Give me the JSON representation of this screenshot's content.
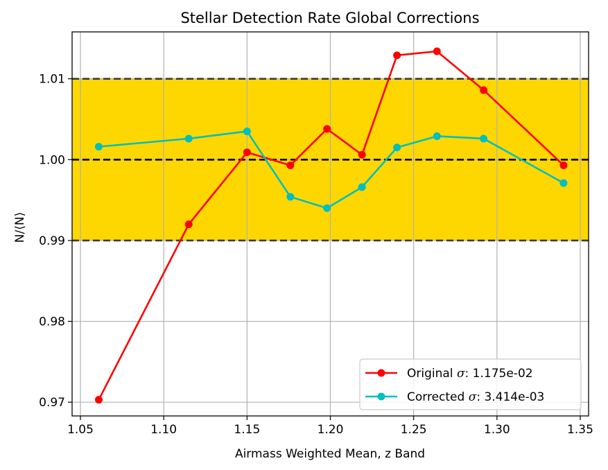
{
  "chart_data": {
    "type": "line",
    "title": "Stellar Detection Rate Global Corrections",
    "xlabel": "Airmass Weighted Mean, z Band",
    "ylabel": "N/⟨N⟩",
    "xlim": [
      1.045,
      1.355
    ],
    "ylim": [
      0.9683,
      1.0158
    ],
    "xticks": [
      1.05,
      1.1,
      1.15,
      1.2,
      1.25,
      1.3,
      1.35
    ],
    "xtick_labels": [
      "1.05",
      "1.10",
      "1.15",
      "1.20",
      "1.25",
      "1.30",
      "1.35"
    ],
    "yticks": [
      0.97,
      0.98,
      0.99,
      1.0,
      1.01
    ],
    "ytick_labels": [
      "0.97",
      "0.98",
      "0.99",
      "1.00",
      "1.01"
    ],
    "grid": true,
    "band": {
      "from": 0.99,
      "to": 1.01,
      "color": "#FFD700"
    },
    "hlines": [
      {
        "y": 1.0,
        "color": "#000000",
        "style": "dashed"
      },
      {
        "y": 0.99,
        "color": "#3a3a3a",
        "style": "dashed"
      },
      {
        "y": 1.01,
        "color": "#3a3a3a",
        "style": "dashed"
      }
    ],
    "legend_position": "lower-right",
    "series": [
      {
        "name_prefix": "Original ",
        "name_symbol": "σ",
        "name_suffix": ": 1.175e-02",
        "color": "#FF0000",
        "x": [
          1.061,
          1.115,
          1.15,
          1.176,
          1.198,
          1.219,
          1.24,
          1.264,
          1.292,
          1.34
        ],
        "y": [
          0.9703,
          0.992,
          1.0009,
          0.9993,
          1.0038,
          1.0006,
          1.0129,
          1.0134,
          1.0086,
          0.9993
        ]
      },
      {
        "name_prefix": "Corrected ",
        "name_symbol": "σ",
        "name_suffix": ": 3.414e-03",
        "color": "#00BFBF",
        "x": [
          1.061,
          1.115,
          1.15,
          1.176,
          1.198,
          1.219,
          1.24,
          1.264,
          1.292,
          1.34
        ],
        "y": [
          1.0016,
          1.0026,
          1.0035,
          0.9954,
          0.994,
          0.9966,
          1.0015,
          1.0029,
          1.0026,
          0.9971
        ]
      }
    ]
  }
}
